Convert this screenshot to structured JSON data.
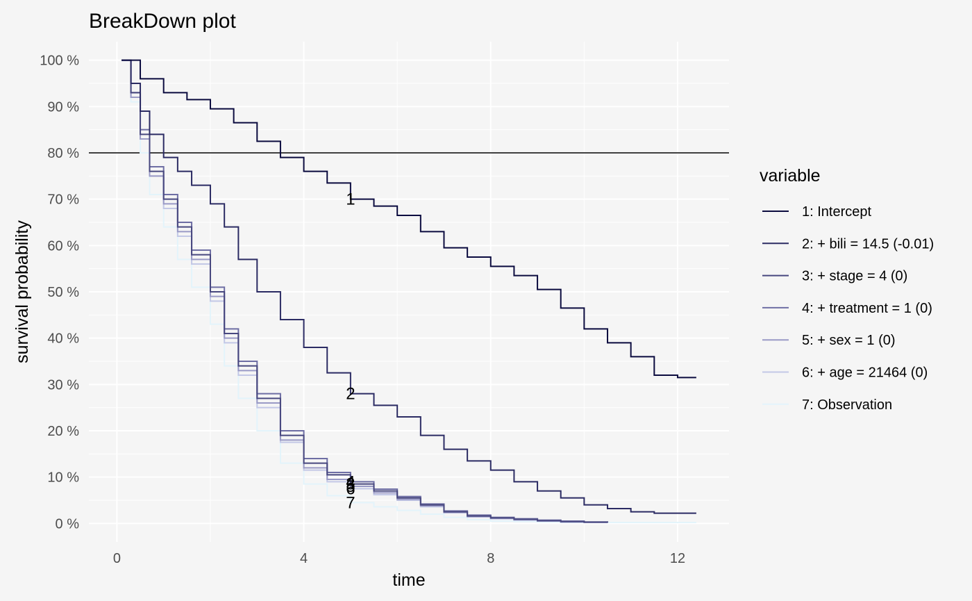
{
  "chart_data": {
    "type": "line",
    "title": "BreakDown plot",
    "xlabel": "time",
    "ylabel": "survival probability",
    "xlim": [
      -0.6,
      13.1
    ],
    "ylim": [
      -0.04,
      1.04
    ],
    "x_ticks": [
      0,
      4,
      8,
      12
    ],
    "y_ticks": [
      0,
      0.1,
      0.2,
      0.3,
      0.4,
      0.5,
      0.6,
      0.7,
      0.8,
      0.9,
      1.0
    ],
    "x_tick_labels": [
      "0",
      "4",
      "8",
      "12"
    ],
    "y_tick_labels": [
      "0 %",
      "10 %",
      "20 %",
      "30 %",
      "40 %",
      "50 %",
      "60 %",
      "70 %",
      "80 %",
      "90 %",
      "100 %"
    ],
    "reference_line": 0.8,
    "grid": true,
    "legend": {
      "title": "variable",
      "position": "right"
    },
    "series": [
      {
        "name": "1: Intercept",
        "label": "1",
        "color": "#0b0b3f",
        "x": [
          0.1,
          0.5,
          1.0,
          1.5,
          2.0,
          2.5,
          3.0,
          3.5,
          4.0,
          4.5,
          5.0,
          5.5,
          6.0,
          6.5,
          7.0,
          7.5,
          8.0,
          8.5,
          9.0,
          9.5,
          10.0,
          10.5,
          11.0,
          11.5,
          12.0,
          12.4
        ],
        "y": [
          1.0,
          0.96,
          0.93,
          0.915,
          0.895,
          0.865,
          0.825,
          0.79,
          0.76,
          0.735,
          0.7,
          0.685,
          0.665,
          0.63,
          0.595,
          0.575,
          0.555,
          0.535,
          0.505,
          0.465,
          0.42,
          0.39,
          0.36,
          0.32,
          0.315,
          0.315
        ]
      },
      {
        "name": "2: + bili = 14.5 (-0.01)",
        "label": "2",
        "color": "#2b2b63",
        "x": [
          0.1,
          0.3,
          0.5,
          0.7,
          1.0,
          1.3,
          1.6,
          2.0,
          2.3,
          2.6,
          3.0,
          3.5,
          4.0,
          4.5,
          5.0,
          5.5,
          6.0,
          6.5,
          7.0,
          7.5,
          8.0,
          8.5,
          9.0,
          9.5,
          10.0,
          10.5,
          11.0,
          11.5,
          12.0,
          12.4
        ],
        "y": [
          1.0,
          0.95,
          0.89,
          0.84,
          0.79,
          0.76,
          0.73,
          0.69,
          0.64,
          0.57,
          0.5,
          0.44,
          0.38,
          0.325,
          0.28,
          0.255,
          0.23,
          0.19,
          0.16,
          0.135,
          0.115,
          0.09,
          0.07,
          0.055,
          0.04,
          0.032,
          0.025,
          0.022,
          0.022,
          0.022
        ]
      },
      {
        "name": "3: + stage = 4 (0)",
        "label": "3",
        "color": "#48487f",
        "x": [
          0.1,
          0.3,
          0.5,
          0.7,
          1.0,
          1.3,
          1.6,
          2.0,
          2.3,
          2.6,
          3.0,
          3.5,
          4.0,
          4.5,
          5.0,
          5.5,
          6.0,
          6.5,
          7.0,
          7.5,
          8.0,
          8.5,
          9.0,
          9.5,
          10.0,
          10.5
        ],
        "y": [
          1.0,
          0.93,
          0.84,
          0.76,
          0.7,
          0.64,
          0.58,
          0.5,
          0.41,
          0.34,
          0.27,
          0.19,
          0.13,
          0.105,
          0.085,
          0.07,
          0.055,
          0.04,
          0.025,
          0.016,
          0.012,
          0.009,
          0.006,
          0.004,
          0.003,
          0.002
        ]
      },
      {
        "name": "4: + treatment = 1 (0)",
        "label": "4",
        "color": "#6e6ea4",
        "x": [
          0.1,
          0.3,
          0.5,
          0.7,
          1.0,
          1.3,
          1.6,
          2.0,
          2.3,
          2.6,
          3.0,
          3.5,
          4.0,
          4.5,
          5.0,
          5.5,
          6.0,
          6.5,
          7.0,
          7.5,
          8.0,
          8.5,
          9.0,
          9.5,
          10.0,
          10.5
        ],
        "y": [
          1.0,
          0.93,
          0.85,
          0.77,
          0.71,
          0.65,
          0.59,
          0.51,
          0.42,
          0.35,
          0.28,
          0.2,
          0.14,
          0.11,
          0.09,
          0.074,
          0.058,
          0.042,
          0.027,
          0.018,
          0.013,
          0.01,
          0.007,
          0.005,
          0.003,
          0.002
        ]
      },
      {
        "name": "5: + sex = 1 (0)",
        "label": "5",
        "color": "#9a9ac6",
        "x": [
          0.1,
          0.3,
          0.5,
          0.7,
          1.0,
          1.3,
          1.6,
          2.0,
          2.3,
          2.6,
          3.0,
          3.5,
          4.0,
          4.5,
          5.0,
          5.5,
          6.0,
          6.5,
          7.0,
          7.5,
          8.0,
          8.5,
          9.0,
          9.5,
          10.0,
          10.5
        ],
        "y": [
          1.0,
          0.92,
          0.83,
          0.75,
          0.69,
          0.63,
          0.57,
          0.49,
          0.4,
          0.33,
          0.26,
          0.18,
          0.12,
          0.095,
          0.08,
          0.066,
          0.052,
          0.038,
          0.024,
          0.015,
          0.011,
          0.008,
          0.005,
          0.003,
          0.002,
          0.001
        ]
      },
      {
        "name": "6: + age = 21464 (0)",
        "label": "6",
        "color": "#c3c8e6",
        "x": [
          0.1,
          0.3,
          0.5,
          0.7,
          1.0,
          1.3,
          1.6,
          2.0,
          2.3,
          2.6,
          3.0,
          3.5,
          4.0,
          4.5,
          5.0,
          5.5,
          6.0,
          6.5,
          7.0,
          7.5,
          8.0,
          8.5,
          9.0,
          9.5,
          10.0,
          10.5
        ],
        "y": [
          1.0,
          0.92,
          0.83,
          0.75,
          0.68,
          0.62,
          0.56,
          0.48,
          0.39,
          0.32,
          0.25,
          0.175,
          0.115,
          0.09,
          0.075,
          0.062,
          0.05,
          0.036,
          0.023,
          0.014,
          0.01,
          0.007,
          0.005,
          0.003,
          0.002,
          0.001
        ]
      },
      {
        "name": "7: Observation",
        "label": "7",
        "color": "#e3f4fb",
        "x": [
          0.1,
          0.3,
          0.5,
          0.7,
          1.0,
          1.3,
          1.6,
          2.0,
          2.3,
          2.6,
          3.0,
          3.5,
          4.0,
          4.5,
          5.0,
          5.5,
          6.0,
          6.5,
          7.0,
          7.5,
          8.0,
          8.5,
          9.0,
          9.5,
          10.0,
          10.5,
          11.0,
          11.5,
          12.0,
          12.4
        ],
        "y": [
          1.0,
          0.91,
          0.8,
          0.71,
          0.64,
          0.57,
          0.51,
          0.43,
          0.34,
          0.27,
          0.2,
          0.13,
          0.085,
          0.06,
          0.045,
          0.036,
          0.028,
          0.02,
          0.013,
          0.008,
          0.005,
          0.004,
          0.003,
          0.002,
          0.002,
          0.002,
          0.002,
          0.002,
          0.002,
          0.002
        ]
      }
    ],
    "series_labels_at_x": 5.0
  }
}
